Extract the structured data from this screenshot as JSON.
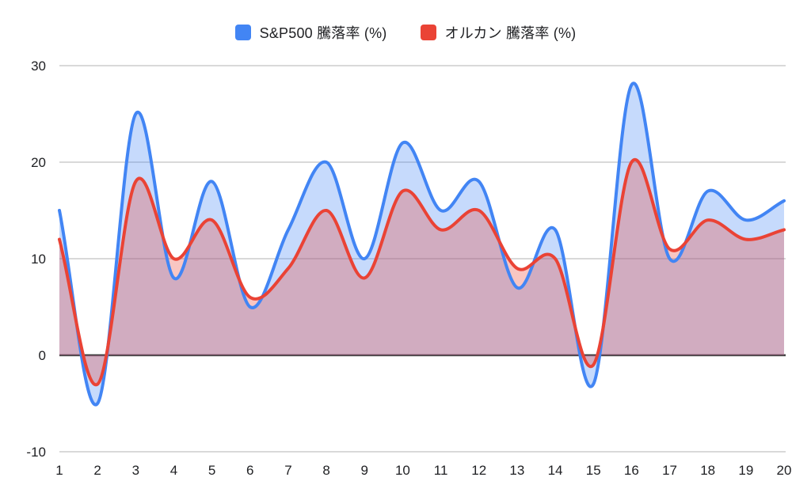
{
  "legend": {
    "items": [
      {
        "label": "S&P500 騰落率 (%)",
        "color": "#4285f4"
      },
      {
        "label": "オルカン 騰落率 (%)",
        "color": "#ea4335"
      }
    ]
  },
  "chart_data": {
    "type": "area",
    "title": "",
    "smooth": true,
    "grid": true,
    "legend_position": "top",
    "baseline": 0,
    "x": [
      1,
      2,
      3,
      4,
      5,
      6,
      7,
      8,
      9,
      10,
      11,
      12,
      13,
      14,
      15,
      16,
      17,
      18,
      19,
      20
    ],
    "y_ticks": [
      30,
      20,
      10,
      0,
      -10
    ],
    "ylim": [
      -10,
      30
    ],
    "xlabel": "",
    "ylabel": "",
    "series": [
      {
        "name": "S&P500 騰落率 (%)",
        "color": "#4285f4",
        "fill_opacity": 0.3,
        "values": [
          15,
          -5,
          25,
          8,
          18,
          5,
          13,
          20,
          10,
          22,
          15,
          18,
          7,
          13,
          -3,
          28,
          10,
          17,
          14,
          16
        ]
      },
      {
        "name": "オルカン 騰落率 (%)",
        "color": "#ea4335",
        "fill_opacity": 0.3,
        "values": [
          12,
          -3,
          18,
          10,
          14,
          6,
          9,
          15,
          8,
          17,
          13,
          15,
          9,
          10,
          -1,
          20,
          11,
          14,
          12,
          13
        ]
      }
    ],
    "colors": {
      "grid": "#d9d9d9",
      "zero_line": "#424242",
      "tick_labels": "#202124",
      "background": "#ffffff"
    }
  }
}
